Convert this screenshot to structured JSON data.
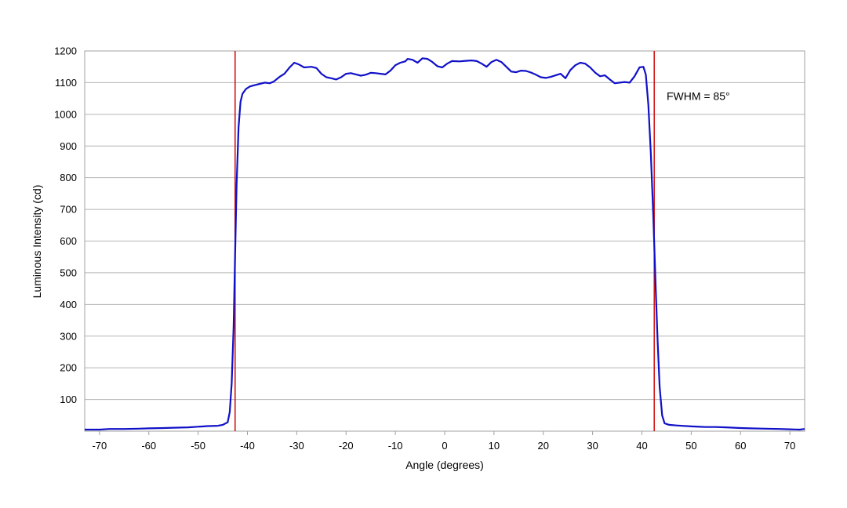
{
  "chart_data": {
    "type": "line",
    "title": "",
    "xlabel": "Angle (degrees)",
    "ylabel": "Luminous Intensity (cd)",
    "xlim": [
      -73,
      73
    ],
    "ylim": [
      0,
      1200
    ],
    "x_ticks": [
      -70,
      -60,
      -50,
      -40,
      -30,
      -20,
      -10,
      0,
      10,
      20,
      30,
      40,
      50,
      60,
      70
    ],
    "y_ticks": [
      100,
      200,
      300,
      400,
      500,
      600,
      700,
      800,
      900,
      1000,
      1100,
      1200
    ],
    "x_tick_labels": [
      "-70",
      "-60",
      "-50",
      "-40",
      "-30",
      "-20",
      "-10",
      "0",
      "10",
      "20",
      "30",
      "40",
      "50",
      "60",
      "70"
    ],
    "y_tick_labels": [
      "100",
      "200",
      "300",
      "400",
      "500",
      "600",
      "700",
      "800",
      "900",
      "1000",
      "1100",
      "1200"
    ],
    "grid": "horizontal",
    "legend": "none",
    "series": [
      {
        "color": "#1010c8",
        "points": [
          [
            -73,
            5
          ],
          [
            -70,
            5
          ],
          [
            -68,
            7
          ],
          [
            -65,
            7
          ],
          [
            -62,
            8
          ],
          [
            -60,
            9
          ],
          [
            -57,
            10
          ],
          [
            -55,
            11
          ],
          [
            -52,
            12
          ],
          [
            -50,
            14
          ],
          [
            -48,
            16
          ],
          [
            -46,
            17
          ],
          [
            -45,
            20
          ],
          [
            -44,
            28
          ],
          [
            -43.6,
            60
          ],
          [
            -43.2,
            150
          ],
          [
            -42.8,
            330
          ],
          [
            -42.5,
            560
          ],
          [
            -42.2,
            780
          ],
          [
            -41.8,
            960
          ],
          [
            -41.4,
            1040
          ],
          [
            -41,
            1065
          ],
          [
            -40.3,
            1080
          ],
          [
            -39.5,
            1088
          ],
          [
            -38.5,
            1092
          ],
          [
            -37.5,
            1096
          ],
          [
            -36.5,
            1100
          ],
          [
            -35.5,
            1098
          ],
          [
            -34.7,
            1103
          ],
          [
            -33.5,
            1118
          ],
          [
            -32.5,
            1128
          ],
          [
            -31.5,
            1147
          ],
          [
            -30.5,
            1163
          ],
          [
            -29.5,
            1157
          ],
          [
            -28.5,
            1148
          ],
          [
            -27,
            1150
          ],
          [
            -26,
            1146
          ],
          [
            -25,
            1128
          ],
          [
            -24,
            1117
          ],
          [
            -23,
            1114
          ],
          [
            -22,
            1110
          ],
          [
            -21,
            1117
          ],
          [
            -20,
            1128
          ],
          [
            -19,
            1130
          ],
          [
            -18,
            1126
          ],
          [
            -17,
            1122
          ],
          [
            -16,
            1125
          ],
          [
            -15,
            1131
          ],
          [
            -14,
            1130
          ],
          [
            -13,
            1128
          ],
          [
            -12,
            1126
          ],
          [
            -11,
            1138
          ],
          [
            -10,
            1155
          ],
          [
            -9,
            1163
          ],
          [
            -8,
            1167
          ],
          [
            -7.5,
            1175
          ],
          [
            -6.5,
            1172
          ],
          [
            -5.5,
            1163
          ],
          [
            -4.5,
            1177
          ],
          [
            -3.5,
            1175
          ],
          [
            -2.5,
            1165
          ],
          [
            -1.5,
            1152
          ],
          [
            -0.5,
            1148
          ],
          [
            0.5,
            1160
          ],
          [
            1.5,
            1168
          ],
          [
            3,
            1167
          ],
          [
            4.5,
            1169
          ],
          [
            5.5,
            1170
          ],
          [
            6.5,
            1168
          ],
          [
            7.5,
            1160
          ],
          [
            8.5,
            1150
          ],
          [
            9.5,
            1165
          ],
          [
            10.5,
            1172
          ],
          [
            11.5,
            1165
          ],
          [
            12.5,
            1150
          ],
          [
            13.5,
            1135
          ],
          [
            14.5,
            1133
          ],
          [
            15.5,
            1138
          ],
          [
            16.5,
            1137
          ],
          [
            17.5,
            1132
          ],
          [
            18.5,
            1125
          ],
          [
            19.5,
            1117
          ],
          [
            20.5,
            1115
          ],
          [
            21.5,
            1118
          ],
          [
            22.5,
            1123
          ],
          [
            23.5,
            1128
          ],
          [
            24.5,
            1114
          ],
          [
            25.5,
            1140
          ],
          [
            26.5,
            1155
          ],
          [
            27.5,
            1163
          ],
          [
            28.5,
            1160
          ],
          [
            29.5,
            1148
          ],
          [
            30.5,
            1132
          ],
          [
            31.5,
            1120
          ],
          [
            32.5,
            1123
          ],
          [
            33.5,
            1110
          ],
          [
            34.5,
            1098
          ],
          [
            35.5,
            1100
          ],
          [
            36.5,
            1102
          ],
          [
            37.5,
            1100
          ],
          [
            38.5,
            1120
          ],
          [
            39.5,
            1148
          ],
          [
            40.3,
            1150
          ],
          [
            40.8,
            1125
          ],
          [
            41.3,
            1030
          ],
          [
            41.8,
            880
          ],
          [
            42.3,
            680
          ],
          [
            42.8,
            450
          ],
          [
            43.2,
            280
          ],
          [
            43.6,
            140
          ],
          [
            44.1,
            50
          ],
          [
            44.6,
            25
          ],
          [
            45.5,
            20
          ],
          [
            47,
            18
          ],
          [
            50,
            15
          ],
          [
            53,
            13
          ],
          [
            55,
            13
          ],
          [
            57,
            12
          ],
          [
            60,
            10
          ],
          [
            62,
            9
          ],
          [
            65,
            8
          ],
          [
            68,
            7
          ],
          [
            70,
            6
          ],
          [
            72,
            5
          ],
          [
            73,
            7
          ]
        ]
      }
    ],
    "vlines": [
      {
        "x": -42.5,
        "color": "#d01818"
      },
      {
        "x": 42.5,
        "color": "#d01818"
      }
    ],
    "annotations": [
      {
        "text": "FWHM = 85°",
        "x": 45,
        "y": 1045
      }
    ]
  }
}
